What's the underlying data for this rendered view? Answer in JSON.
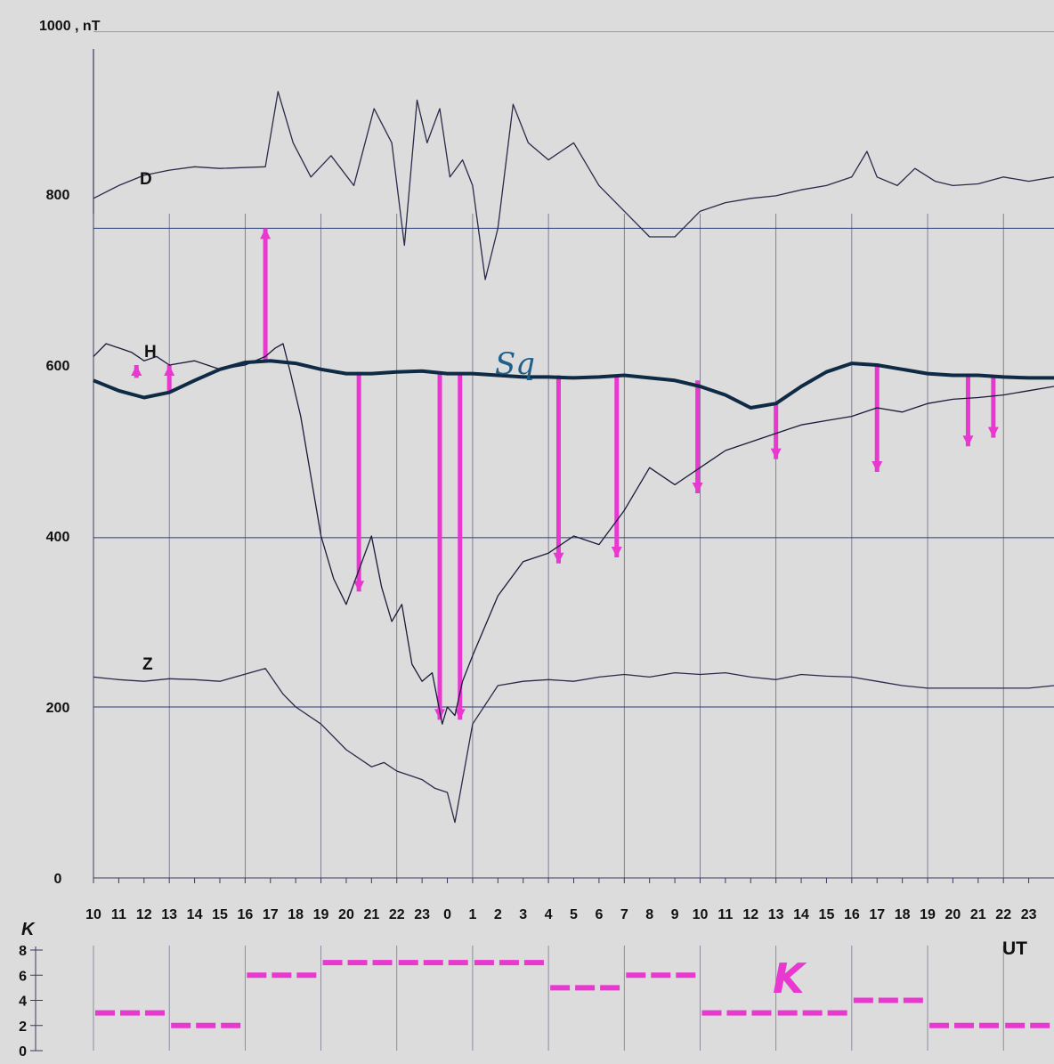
{
  "chart_data": {
    "type": "line",
    "y_unit_label": "1000 , nT",
    "y_ticks": [
      "800",
      "600",
      "400",
      "200",
      "0"
    ],
    "x_ticks": [
      "10",
      "11",
      "12",
      "13",
      "14",
      "15",
      "16",
      "17",
      "18",
      "19",
      "20",
      "21",
      "22",
      "23",
      "0",
      "1",
      "2",
      "3",
      "4",
      "5",
      "6",
      "7",
      "8",
      "9",
      "10",
      "11",
      "12",
      "13",
      "14",
      "15",
      "16",
      "17",
      "18",
      "19",
      "20",
      "21",
      "22",
      "23"
    ],
    "x_unit_label": "UT",
    "sq_label": "Sq",
    "k_label": "K",
    "k_axis_label": "K",
    "k_ticks": [
      "8",
      "6",
      "4",
      "2",
      "0"
    ],
    "series": [
      {
        "name": "D",
        "label": "D",
        "color": "#2a2a4a",
        "x": [
          0,
          1,
          2,
          3,
          4,
          5,
          6.8,
          7.3,
          7.9,
          8.6,
          9.4,
          10.3,
          11.1,
          11.8,
          12.3,
          12.8,
          13.2,
          13.7,
          14.1,
          14.6,
          15.0,
          15.5,
          16.0,
          16.6,
          17.2,
          18.0,
          19.0,
          20.0,
          21.0,
          22.0,
          23.0,
          24.0,
          25.0,
          26.0,
          27.0,
          28.0,
          29.0,
          30.0,
          30.6,
          31.0,
          31.8,
          32.5,
          33.3,
          34.0,
          35.0,
          36.0,
          37.0,
          38.0
        ],
        "y": [
          795,
          810,
          822,
          828,
          832,
          830,
          832,
          920,
          860,
          820,
          845,
          810,
          900,
          860,
          740,
          910,
          860,
          900,
          820,
          840,
          810,
          700,
          760,
          905,
          860,
          840,
          860,
          810,
          780,
          750,
          750,
          780,
          790,
          795,
          798,
          805,
          810,
          820,
          850,
          820,
          810,
          830,
          815,
          810,
          812,
          820,
          815,
          820
        ]
      },
      {
        "name": "H",
        "label": "H",
        "color": "#1a1a3a",
        "x": [
          0,
          0.5,
          1.0,
          1.5,
          2.0,
          2.5,
          3.0,
          4.0,
          5.0,
          6.0,
          6.8,
          7.2,
          7.5,
          7.8,
          8.2,
          8.6,
          9.0,
          9.5,
          10.0,
          10.5,
          11.0,
          11.4,
          11.8,
          12.2,
          12.6,
          13.0,
          13.4,
          13.8,
          14.0,
          14.3,
          14.6,
          15.0,
          16.0,
          17.0,
          18.0,
          19.0,
          20.0,
          21.0,
          22.0,
          23.0,
          24.0,
          25.0,
          26.0,
          27.0,
          28.0,
          29.0,
          30.0,
          31.0,
          32.0,
          33.0,
          34.0,
          35.0,
          36.0,
          37.0,
          38.0
        ],
        "y": [
          610,
          625,
          620,
          615,
          605,
          610,
          600,
          605,
          595,
          600,
          610,
          620,
          625,
          590,
          540,
          470,
          400,
          350,
          320,
          360,
          400,
          340,
          300,
          320,
          250,
          230,
          240,
          180,
          200,
          190,
          230,
          260,
          330,
          370,
          380,
          400,
          390,
          430,
          480,
          460,
          480,
          500,
          510,
          520,
          530,
          535,
          540,
          550,
          545,
          555,
          560,
          562,
          565,
          570,
          575
        ]
      },
      {
        "name": "Z",
        "label": "Z",
        "color": "#2a2a4a",
        "x": [
          0,
          1,
          2,
          3,
          4,
          5,
          6.8,
          7.5,
          8.0,
          9.0,
          10.0,
          11.0,
          11.5,
          12.0,
          12.5,
          13.0,
          13.5,
          14.0,
          14.3,
          15.0,
          16.0,
          17.0,
          18.0,
          19.0,
          20.0,
          21.0,
          22.0,
          23.0,
          24.0,
          25.0,
          26.0,
          27.0,
          28.0,
          29.0,
          30.0,
          31.0,
          32.0,
          33.0,
          34.0,
          35.0,
          36.0,
          37.0,
          38.0
        ],
        "y": [
          235,
          232,
          230,
          233,
          232,
          230,
          245,
          215,
          200,
          180,
          150,
          130,
          135,
          125,
          120,
          115,
          105,
          100,
          65,
          180,
          225,
          230,
          232,
          230,
          235,
          238,
          235,
          240,
          238,
          240,
          235,
          232,
          238,
          236,
          235,
          230,
          225,
          222,
          222,
          222,
          222,
          222,
          225
        ]
      },
      {
        "name": "Sq",
        "label": "",
        "color": "#0e2a44",
        "x": [
          0,
          1,
          2,
          3,
          4,
          5,
          6,
          7,
          8,
          9,
          10,
          11,
          12,
          13,
          14,
          15,
          16,
          17,
          18,
          19,
          20,
          21,
          22,
          23,
          24,
          25,
          26,
          27,
          28,
          29,
          30,
          31,
          32,
          33,
          34,
          35,
          36,
          37,
          38
        ],
        "y": [
          582,
          570,
          562,
          568,
          582,
          595,
          603,
          605,
          602,
          595,
          590,
          590,
          592,
          593,
          590,
          590,
          588,
          586,
          586,
          585,
          586,
          588,
          585,
          582,
          575,
          565,
          550,
          555,
          575,
          592,
          602,
          600,
          595,
          590,
          588,
          588,
          586,
          585,
          585
        ]
      }
    ],
    "sq_deviations": [
      {
        "x": 1.7,
        "from": 585,
        "to": 600
      },
      {
        "x": 3.0,
        "from": 570,
        "to": 600
      },
      {
        "x": 6.8,
        "from": 603,
        "to": 760
      },
      {
        "x": 10.5,
        "from": 592,
        "to": 335
      },
      {
        "x": 13.7,
        "from": 592,
        "to": 185
      },
      {
        "x": 14.5,
        "from": 590,
        "to": 185
      },
      {
        "x": 18.4,
        "from": 588,
        "to": 368
      },
      {
        "x": 20.7,
        "from": 586,
        "to": 375
      },
      {
        "x": 23.9,
        "from": 582,
        "to": 450
      },
      {
        "x": 27.0,
        "from": 555,
        "to": 490
      },
      {
        "x": 31.0,
        "from": 600,
        "to": 475
      },
      {
        "x": 34.6,
        "from": 588,
        "to": 505
      },
      {
        "x": 35.6,
        "from": 588,
        "to": 515
      }
    ],
    "k_index": {
      "color": "#e838d0",
      "blocks": [
        {
          "start": 0,
          "end": 3,
          "value": 3
        },
        {
          "start": 3,
          "end": 6,
          "value": 2
        },
        {
          "start": 6,
          "end": 9,
          "value": 6
        },
        {
          "start": 9,
          "end": 12,
          "value": 7
        },
        {
          "start": 12,
          "end": 15,
          "value": 7
        },
        {
          "start": 15,
          "end": 18,
          "value": 7
        },
        {
          "start": 18,
          "end": 21,
          "value": 5
        },
        {
          "start": 21,
          "end": 24,
          "value": 6
        },
        {
          "start": 24,
          "end": 27,
          "value": 3
        },
        {
          "start": 27,
          "end": 30,
          "value": 3
        },
        {
          "start": 30,
          "end": 33,
          "value": 4
        },
        {
          "start": 33,
          "end": 36,
          "value": 2
        },
        {
          "start": 36,
          "end": 38,
          "value": 2
        }
      ]
    }
  }
}
